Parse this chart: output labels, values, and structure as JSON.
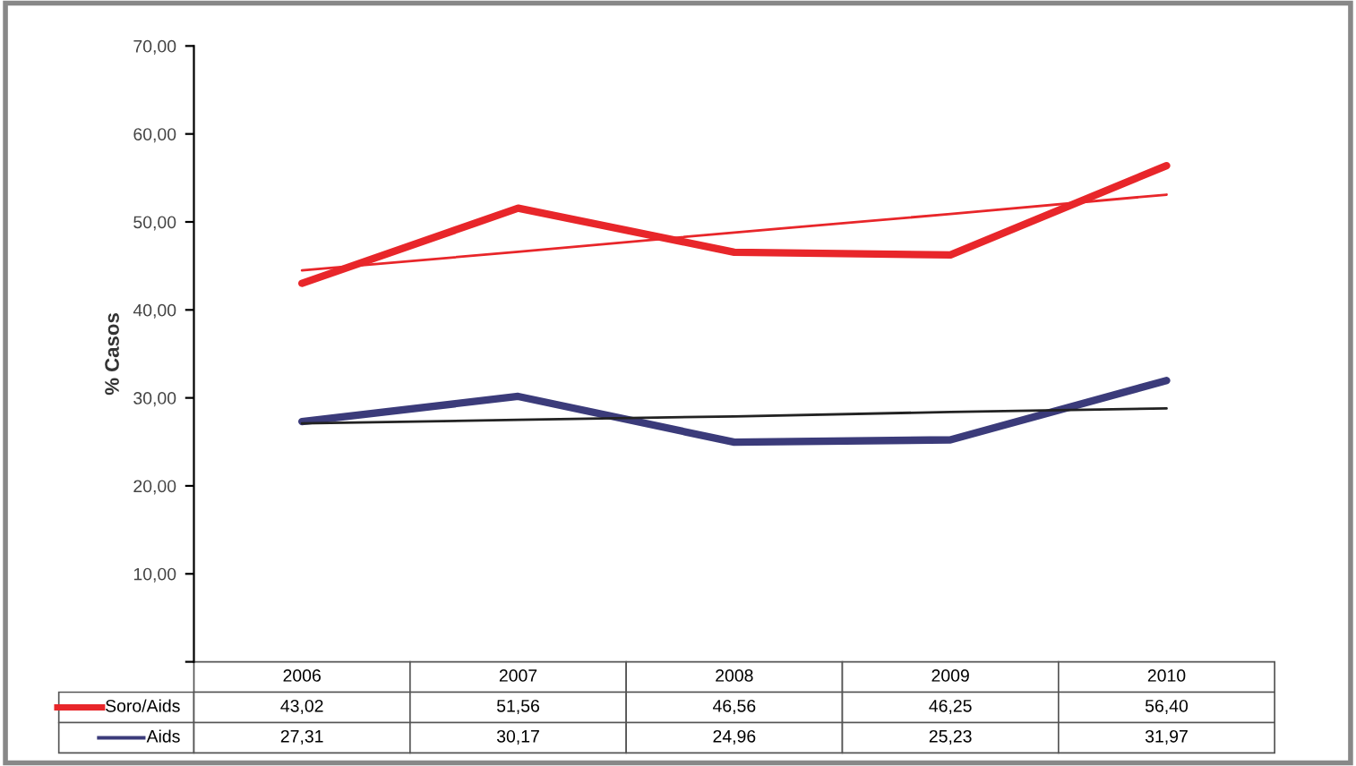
{
  "chart_data": {
    "type": "line",
    "ylabel": "% Casos",
    "categories": [
      "2006",
      "2007",
      "2008",
      "2009",
      "2010"
    ],
    "ylim": [
      0,
      70
    ],
    "yticks": [
      {
        "value": 0,
        "label": null
      },
      {
        "value": 10,
        "label": "10,00"
      },
      {
        "value": 20,
        "label": "20,00"
      },
      {
        "value": 30,
        "label": "30,00"
      },
      {
        "value": 40,
        "label": "40,00"
      },
      {
        "value": 50,
        "label": "50,00"
      },
      {
        "value": 60,
        "label": "60,00"
      },
      {
        "value": 70,
        "label": "70,00"
      }
    ],
    "series": [
      {
        "name": "Soro/Aids",
        "color": "#e8262a",
        "values": [
          43.02,
          51.56,
          46.56,
          46.25,
          56.4
        ],
        "value_labels": [
          "43,02",
          "51,56",
          "46,56",
          "46,25",
          "56,40"
        ]
      },
      {
        "name": "Aids",
        "color": "#3b3b7a",
        "values": [
          27.31,
          30.17,
          24.96,
          25.23,
          31.97
        ],
        "value_labels": [
          "27,31",
          "30,17",
          "24,96",
          "25,23",
          "31,97"
        ]
      },
      {
        "type": "line",
        "color": "#e8262a",
        "values": [
          44.5,
          46.6,
          48.8,
          50.9,
          53.1
        ]
      },
      {
        "type": "line",
        "color": "#222222",
        "values": [
          27.1,
          27.5,
          27.9,
          28.4,
          28.8
        ]
      }
    ],
    "grid": false,
    "marker": "none",
    "line_style": "solid",
    "tick_labels": "y",
    "legend": "bottom"
  }
}
